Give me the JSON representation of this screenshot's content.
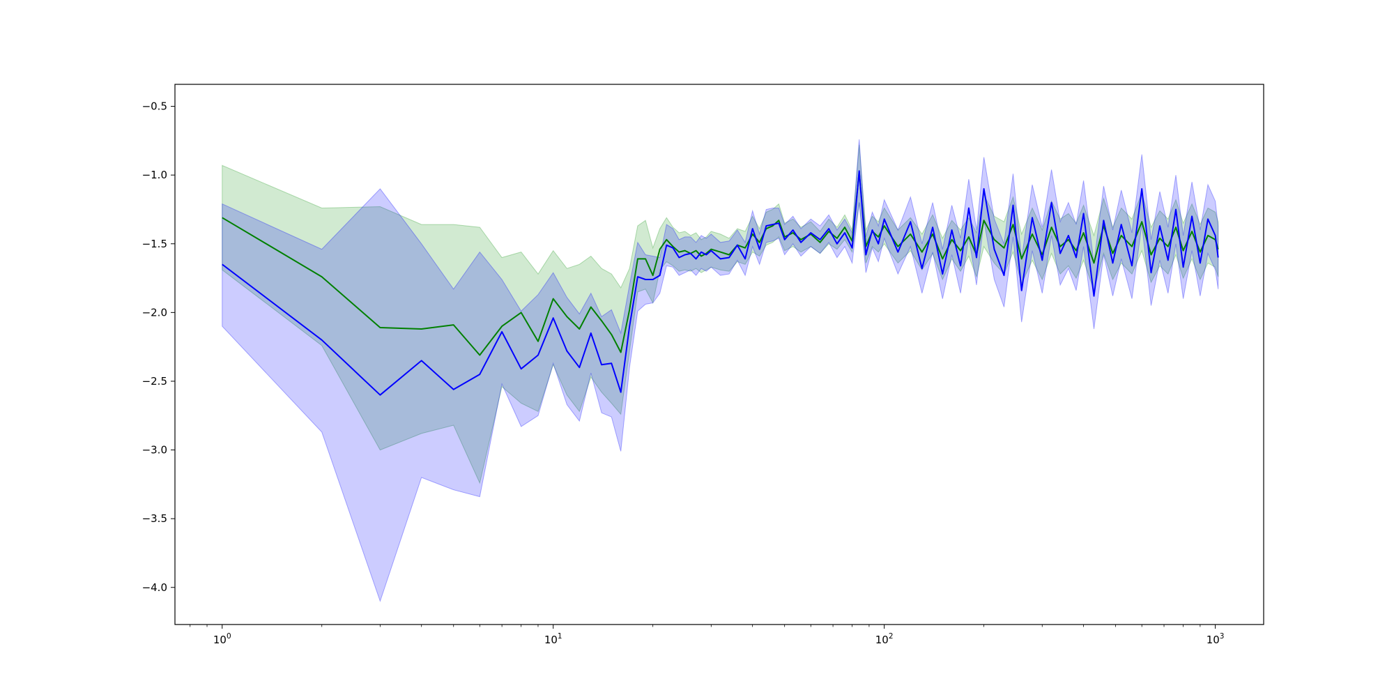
{
  "chart_data": {
    "type": "line",
    "title": "",
    "xlabel": "",
    "ylabel": "",
    "xscale": "log",
    "xlim": [
      0.72,
      1400
    ],
    "ylim": [
      -4.27,
      -0.34
    ],
    "grid": false,
    "legend": "none",
    "x_ticks": [
      {
        "value": 1,
        "base": "10",
        "exp": "0"
      },
      {
        "value": 10,
        "base": "10",
        "exp": "1"
      },
      {
        "value": 100,
        "base": "10",
        "exp": "2"
      },
      {
        "value": 1000,
        "base": "10",
        "exp": "3"
      }
    ],
    "y_ticks": [
      {
        "value": -0.5,
        "label": "−0.5"
      },
      {
        "value": -1.0,
        "label": "−1.0"
      },
      {
        "value": -1.5,
        "label": "−1.5"
      },
      {
        "value": -2.0,
        "label": "−2.0"
      },
      {
        "value": -2.5,
        "label": "−2.5"
      },
      {
        "value": -3.0,
        "label": "−3.0"
      },
      {
        "value": -3.5,
        "label": "−3.5"
      },
      {
        "value": -4.0,
        "label": "−4.0"
      }
    ],
    "series": [
      {
        "color": "#008000",
        "band_color": "#2ca02c",
        "band_opacity": 0.22,
        "x": [
          1,
          2,
          3,
          4,
          5,
          6,
          7,
          8,
          9,
          10,
          11,
          12,
          13,
          14,
          15,
          16,
          17,
          18,
          19,
          20,
          21,
          22,
          23,
          24,
          25,
          26,
          27,
          28,
          29,
          30,
          32,
          34,
          36,
          38,
          40,
          42,
          44,
          46,
          48,
          50,
          53,
          56,
          60,
          64,
          68,
          72,
          76,
          80,
          84,
          88,
          92,
          96,
          100,
          110,
          120,
          130,
          140,
          150,
          160,
          170,
          180,
          190,
          200,
          215,
          230,
          245,
          260,
          280,
          300,
          320,
          340,
          360,
          380,
          400,
          430,
          460,
          490,
          520,
          560,
          600,
          640,
          680,
          720,
          760,
          800,
          850,
          900,
          950,
          1000,
          1020
        ],
        "y": [
          -1.31,
          -1.74,
          -2.11,
          -2.12,
          -2.09,
          -2.31,
          -2.1,
          -2.0,
          -2.21,
          -1.9,
          -2.03,
          -2.12,
          -1.96,
          -2.06,
          -2.16,
          -2.29,
          -1.98,
          -1.61,
          -1.61,
          -1.73,
          -1.54,
          -1.47,
          -1.52,
          -1.56,
          -1.55,
          -1.57,
          -1.55,
          -1.59,
          -1.57,
          -1.54,
          -1.56,
          -1.58,
          -1.51,
          -1.53,
          -1.43,
          -1.49,
          -1.39,
          -1.37,
          -1.33,
          -1.45,
          -1.42,
          -1.47,
          -1.43,
          -1.49,
          -1.41,
          -1.46,
          -1.38,
          -1.48,
          -0.98,
          -1.52,
          -1.41,
          -1.45,
          -1.37,
          -1.52,
          -1.43,
          -1.56,
          -1.43,
          -1.61,
          -1.47,
          -1.55,
          -1.45,
          -1.58,
          -1.33,
          -1.47,
          -1.53,
          -1.36,
          -1.61,
          -1.43,
          -1.58,
          -1.38,
          -1.52,
          -1.47,
          -1.55,
          -1.42,
          -1.64,
          -1.37,
          -1.57,
          -1.44,
          -1.52,
          -1.34,
          -1.58,
          -1.46,
          -1.52,
          -1.38,
          -1.55,
          -1.41,
          -1.56,
          -1.44,
          -1.47,
          -1.54
        ],
        "lower": [
          -1.69,
          -2.24,
          -3.0,
          -2.88,
          -2.82,
          -3.24,
          -2.54,
          -2.66,
          -2.72,
          -2.38,
          -2.6,
          -2.72,
          -2.47,
          -2.58,
          -2.66,
          -2.74,
          -2.28,
          -1.85,
          -1.83,
          -1.93,
          -1.69,
          -1.63,
          -1.66,
          -1.7,
          -1.69,
          -1.7,
          -1.68,
          -1.71,
          -1.69,
          -1.67,
          -1.69,
          -1.7,
          -1.63,
          -1.65,
          -1.56,
          -1.59,
          -1.51,
          -1.49,
          -1.45,
          -1.55,
          -1.52,
          -1.56,
          -1.52,
          -1.57,
          -1.5,
          -1.54,
          -1.47,
          -1.56,
          -1.2,
          -1.64,
          -1.52,
          -1.56,
          -1.5,
          -1.64,
          -1.55,
          -1.69,
          -1.57,
          -1.76,
          -1.61,
          -1.7,
          -1.59,
          -1.74,
          -1.52,
          -1.64,
          -1.72,
          -1.56,
          -1.79,
          -1.62,
          -1.76,
          -1.57,
          -1.72,
          -1.66,
          -1.75,
          -1.62,
          -1.84,
          -1.57,
          -1.76,
          -1.64,
          -1.72,
          -1.55,
          -1.78,
          -1.66,
          -1.72,
          -1.58,
          -1.75,
          -1.61,
          -1.76,
          -1.64,
          -1.67,
          -1.74
        ],
        "upper": [
          -0.93,
          -1.24,
          -1.23,
          -1.36,
          -1.36,
          -1.38,
          -1.6,
          -1.56,
          -1.72,
          -1.55,
          -1.68,
          -1.65,
          -1.59,
          -1.68,
          -1.72,
          -1.82,
          -1.68,
          -1.37,
          -1.33,
          -1.53,
          -1.39,
          -1.31,
          -1.38,
          -1.42,
          -1.41,
          -1.44,
          -1.42,
          -1.47,
          -1.45,
          -1.41,
          -1.43,
          -1.46,
          -1.39,
          -1.41,
          -1.3,
          -1.39,
          -1.27,
          -1.25,
          -1.21,
          -1.35,
          -1.32,
          -1.38,
          -1.34,
          -1.41,
          -1.32,
          -1.38,
          -1.29,
          -1.4,
          -0.78,
          -1.4,
          -1.3,
          -1.34,
          -1.24,
          -1.4,
          -1.31,
          -1.43,
          -1.29,
          -1.46,
          -1.33,
          -1.4,
          -1.31,
          -1.42,
          -1.14,
          -1.3,
          -1.34,
          -1.16,
          -1.43,
          -1.24,
          -1.4,
          -1.19,
          -1.32,
          -1.28,
          -1.35,
          -1.22,
          -1.44,
          -1.17,
          -1.38,
          -1.24,
          -1.32,
          -1.13,
          -1.38,
          -1.26,
          -1.32,
          -1.18,
          -1.35,
          -1.21,
          -1.36,
          -1.24,
          -1.27,
          -1.34
        ]
      },
      {
        "color": "#0000ff",
        "band_color": "#0000ff",
        "band_opacity": 0.2,
        "x": [
          1,
          2,
          3,
          4,
          5,
          6,
          7,
          8,
          9,
          10,
          11,
          12,
          13,
          14,
          15,
          16,
          17,
          18,
          19,
          20,
          21,
          22,
          23,
          24,
          25,
          26,
          27,
          28,
          29,
          30,
          32,
          34,
          36,
          38,
          40,
          42,
          44,
          46,
          48,
          50,
          53,
          56,
          60,
          64,
          68,
          72,
          76,
          80,
          84,
          88,
          92,
          96,
          100,
          110,
          120,
          130,
          140,
          150,
          160,
          170,
          180,
          190,
          200,
          215,
          230,
          245,
          260,
          280,
          300,
          320,
          340,
          360,
          380,
          400,
          430,
          460,
          490,
          520,
          560,
          600,
          640,
          680,
          720,
          760,
          800,
          850,
          900,
          950,
          1000,
          1020
        ],
        "y": [
          -1.65,
          -2.2,
          -2.6,
          -2.35,
          -2.56,
          -2.45,
          -2.14,
          -2.41,
          -2.31,
          -2.04,
          -2.28,
          -2.4,
          -2.15,
          -2.38,
          -2.37,
          -2.58,
          -2.1,
          -1.74,
          -1.76,
          -1.76,
          -1.73,
          -1.51,
          -1.53,
          -1.6,
          -1.58,
          -1.57,
          -1.61,
          -1.56,
          -1.58,
          -1.55,
          -1.61,
          -1.6,
          -1.51,
          -1.61,
          -1.39,
          -1.54,
          -1.37,
          -1.36,
          -1.35,
          -1.47,
          -1.4,
          -1.49,
          -1.42,
          -1.47,
          -1.39,
          -1.5,
          -1.42,
          -1.53,
          -0.97,
          -1.58,
          -1.4,
          -1.5,
          -1.32,
          -1.56,
          -1.34,
          -1.68,
          -1.38,
          -1.72,
          -1.4,
          -1.66,
          -1.24,
          -1.6,
          -1.1,
          -1.54,
          -1.73,
          -1.22,
          -1.84,
          -1.31,
          -1.62,
          -1.2,
          -1.57,
          -1.44,
          -1.6,
          -1.28,
          -1.88,
          -1.33,
          -1.64,
          -1.36,
          -1.66,
          -1.1,
          -1.71,
          -1.37,
          -1.62,
          -1.25,
          -1.67,
          -1.3,
          -1.64,
          -1.32,
          -1.44,
          -1.6
        ],
        "lower": [
          -2.1,
          -2.87,
          -4.1,
          -3.2,
          -3.29,
          -3.34,
          -2.52,
          -2.83,
          -2.75,
          -2.37,
          -2.67,
          -2.79,
          -2.44,
          -2.73,
          -2.76,
          -3.01,
          -2.4,
          -1.99,
          -1.94,
          -1.93,
          -1.86,
          -1.66,
          -1.67,
          -1.73,
          -1.71,
          -1.69,
          -1.73,
          -1.68,
          -1.7,
          -1.67,
          -1.73,
          -1.72,
          -1.62,
          -1.73,
          -1.52,
          -1.65,
          -1.49,
          -1.48,
          -1.46,
          -1.58,
          -1.5,
          -1.59,
          -1.52,
          -1.57,
          -1.49,
          -1.6,
          -1.52,
          -1.64,
          -1.2,
          -1.71,
          -1.53,
          -1.63,
          -1.46,
          -1.72,
          -1.52,
          -1.86,
          -1.56,
          -1.9,
          -1.58,
          -1.86,
          -1.45,
          -1.8,
          -1.33,
          -1.76,
          -1.96,
          -1.45,
          -2.07,
          -1.55,
          -1.86,
          -1.44,
          -1.8,
          -1.68,
          -1.84,
          -1.52,
          -2.12,
          -1.58,
          -1.88,
          -1.61,
          -1.9,
          -1.36,
          -1.95,
          -1.62,
          -1.86,
          -1.5,
          -1.9,
          -1.55,
          -1.88,
          -1.57,
          -1.69,
          -1.83
        ],
        "upper": [
          -1.21,
          -1.54,
          -1.1,
          -1.5,
          -1.83,
          -1.56,
          -1.76,
          -1.99,
          -1.87,
          -1.71,
          -1.89,
          -2.01,
          -1.86,
          -2.03,
          -1.98,
          -2.15,
          -1.8,
          -1.49,
          -1.58,
          -1.59,
          -1.6,
          -1.36,
          -1.39,
          -1.47,
          -1.45,
          -1.45,
          -1.49,
          -1.44,
          -1.46,
          -1.43,
          -1.49,
          -1.48,
          -1.4,
          -1.49,
          -1.26,
          -1.43,
          -1.25,
          -1.24,
          -1.24,
          -1.36,
          -1.3,
          -1.39,
          -1.32,
          -1.37,
          -1.29,
          -1.4,
          -1.32,
          -1.42,
          -0.74,
          -1.45,
          -1.27,
          -1.37,
          -1.18,
          -1.4,
          -1.16,
          -1.5,
          -1.2,
          -1.54,
          -1.22,
          -1.46,
          -1.03,
          -1.4,
          -0.87,
          -1.32,
          -1.5,
          -0.99,
          -1.61,
          -1.07,
          -1.38,
          -0.96,
          -1.34,
          -1.2,
          -1.36,
          -1.04,
          -1.64,
          -1.08,
          -1.4,
          -1.11,
          -1.42,
          -0.85,
          -1.47,
          -1.12,
          -1.38,
          -1.0,
          -1.44,
          -1.05,
          -1.4,
          -1.07,
          -1.19,
          -1.37
        ]
      }
    ]
  }
}
